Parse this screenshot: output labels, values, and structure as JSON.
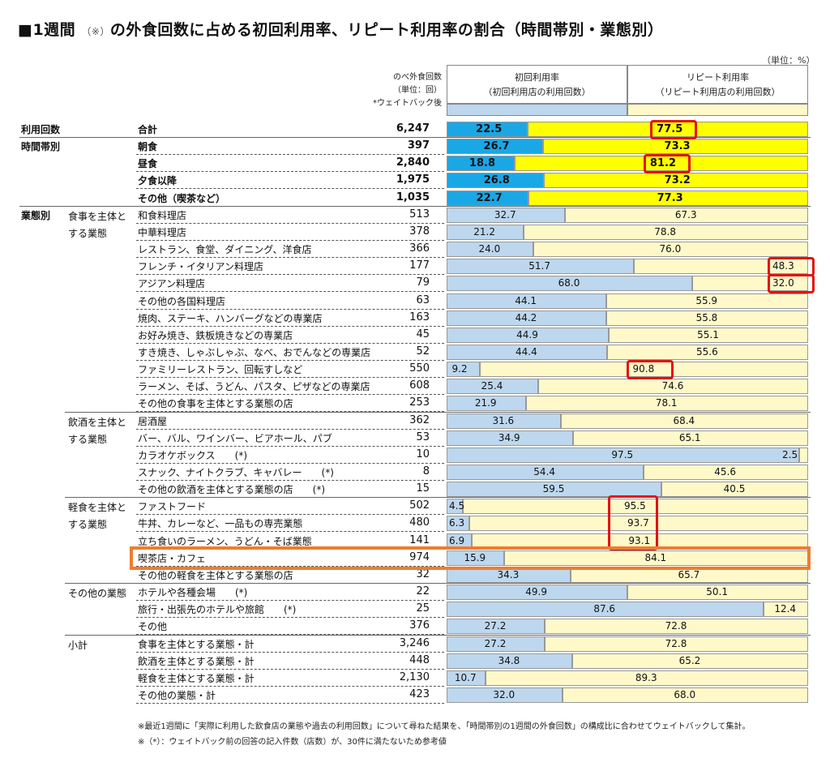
{
  "title": "■1週間",
  "title_note": "（※）",
  "title_rest": "の外食回数に占める初回利用率、リピート利用率の割合（時間帯別・業態別）",
  "unit": "（単位：%）",
  "header": {
    "count_lines": [
      "のべ外食回数",
      "（単位：回）",
      "*ウェイトバック後"
    ],
    "first_title": "初回利用率",
    "first_sub": "（初回利用店の利用回数）",
    "repeat_title": "リピート利用率",
    "repeat_sub": "（リピート利用店の利用回数）"
  },
  "colors": {
    "first_strong": "#1aa7e6",
    "repeat_strong": "#ffff00",
    "first_light": "#bdd7ee",
    "repeat_light": "#fff9c9",
    "highlight_red": "#e21212",
    "highlight_orange": "#ed7d31"
  },
  "chart_data": {
    "type": "bar",
    "stacked": true,
    "orientation": "horizontal",
    "unit": "%",
    "series": [
      {
        "name": "初回利用率"
      },
      {
        "name": "リピート利用率"
      }
    ],
    "rows": [
      {
        "g1": "利用回数",
        "g2": "",
        "label": "合計",
        "count": "6,247",
        "first": 22.5,
        "repeat": 77.5,
        "style": "strong",
        "bold": true,
        "box": "repeat"
      },
      {
        "g1": "時間帯別",
        "g2": "",
        "label": "朝食",
        "count": "397",
        "first": 26.7,
        "repeat": 73.3,
        "style": "strong",
        "bold": true
      },
      {
        "g1": "",
        "g2": "",
        "label": "昼食",
        "count": "2,840",
        "first": 18.8,
        "repeat": 81.2,
        "style": "strong",
        "bold": true,
        "box": "repeat"
      },
      {
        "g1": "",
        "g2": "",
        "label": "夕食以降",
        "count": "1,975",
        "first": 26.8,
        "repeat": 73.2,
        "style": "strong",
        "bold": true
      },
      {
        "g1": "",
        "g2": "",
        "label": "その他（喫茶など）",
        "count": "1,035",
        "first": 22.7,
        "repeat": 77.3,
        "style": "strong",
        "bold": true
      },
      {
        "g1": "業態別",
        "g2": "食事を主体とする業態",
        "label": "和食料理店",
        "count": "513",
        "first": 32.7,
        "repeat": 67.3,
        "style": "light"
      },
      {
        "g1": "",
        "g2": "",
        "label": "中華料理店",
        "count": "378",
        "first": 21.2,
        "repeat": 78.8,
        "style": "light"
      },
      {
        "g1": "",
        "g2": "",
        "label": "レストラン、食堂、ダイニング、洋食店",
        "count": "366",
        "first": 24.0,
        "repeat": 76.0,
        "style": "light"
      },
      {
        "g1": "",
        "g2": "",
        "label": "フレンチ・イタリアン料理店",
        "count": "177",
        "first": 51.7,
        "repeat": 48.3,
        "style": "light",
        "box": "repeat"
      },
      {
        "g1": "",
        "g2": "",
        "label": "アジアン料理店",
        "count": "79",
        "first": 68.0,
        "repeat": 32.0,
        "style": "light",
        "box": "repeat"
      },
      {
        "g1": "",
        "g2": "",
        "label": "その他の各国料理店",
        "count": "63",
        "first": 44.1,
        "repeat": 55.9,
        "style": "light"
      },
      {
        "g1": "",
        "g2": "",
        "label": "焼肉、ステーキ、ハンバーグなどの専業店",
        "count": "163",
        "first": 44.2,
        "repeat": 55.8,
        "style": "light"
      },
      {
        "g1": "",
        "g2": "",
        "label": "お好み焼き、鉄板焼きなどの専業店",
        "count": "45",
        "first": 44.9,
        "repeat": 55.1,
        "style": "light"
      },
      {
        "g1": "",
        "g2": "",
        "label": "すき焼き、しゃぶしゃぶ、なべ、おでんなどの専業店",
        "count": "52",
        "first": 44.4,
        "repeat": 55.6,
        "style": "light"
      },
      {
        "g1": "",
        "g2": "",
        "label": "ファミリーレストラン、回転すしなど",
        "count": "550",
        "first": 9.2,
        "repeat": 90.8,
        "style": "light",
        "box": "repeat"
      },
      {
        "g1": "",
        "g2": "",
        "label": "ラーメン、そば、うどん、パスタ、ピザなどの専業店",
        "count": "608",
        "first": 25.4,
        "repeat": 74.6,
        "style": "light"
      },
      {
        "g1": "",
        "g2": "",
        "label": "その他の食事を主体とする業態の店",
        "count": "253",
        "first": 21.9,
        "repeat": 78.1,
        "style": "light"
      },
      {
        "g1": "",
        "g2": "飲酒を主体とする業態",
        "label": "居酒屋",
        "count": "362",
        "first": 31.6,
        "repeat": 68.4,
        "style": "light"
      },
      {
        "g1": "",
        "g2": "",
        "label": "バー、バル、ワインバー、ビアホール、パブ",
        "count": "53",
        "first": 34.9,
        "repeat": 65.1,
        "style": "light"
      },
      {
        "g1": "",
        "g2": "",
        "label": "カラオケボックス　　(*)",
        "count": "10",
        "first": 97.5,
        "repeat": 2.5,
        "style": "light"
      },
      {
        "g1": "",
        "g2": "",
        "label": "スナック、ナイトクラブ、キャバレー　　(*)",
        "count": "8",
        "first": 54.4,
        "repeat": 45.6,
        "style": "light"
      },
      {
        "g1": "",
        "g2": "",
        "label": "その他の飲酒を主体とする業態の店　　(*)",
        "count": "15",
        "first": 59.5,
        "repeat": 40.5,
        "style": "light"
      },
      {
        "g1": "",
        "g2": "軽食を主体とする業態",
        "label": "ファストフード",
        "count": "502",
        "first": 4.5,
        "repeat": 95.5,
        "style": "light"
      },
      {
        "g1": "",
        "g2": "",
        "label": "牛丼、カレーなど、一品もの専売業態",
        "count": "480",
        "first": 6.3,
        "repeat": 93.7,
        "style": "light"
      },
      {
        "g1": "",
        "g2": "",
        "label": "立ち食いのラーメン、うどん・そば業態",
        "count": "141",
        "first": 6.9,
        "repeat": 93.1,
        "style": "light"
      },
      {
        "g1": "",
        "g2": "",
        "label": "喫茶店・カフェ",
        "count": "974",
        "first": 15.9,
        "repeat": 84.1,
        "style": "light"
      },
      {
        "g1": "",
        "g2": "",
        "label": "その他の軽食を主体とする業態の店",
        "count": "32",
        "first": 34.3,
        "repeat": 65.7,
        "style": "light"
      },
      {
        "g1": "",
        "g2": "その他の業態",
        "label": "ホテルや各種会場　　(*)",
        "count": "22",
        "first": 49.9,
        "repeat": 50.1,
        "style": "light"
      },
      {
        "g1": "",
        "g2": "",
        "label": "旅行・出張先のホテルや旅館　　(*)",
        "count": "25",
        "first": 87.6,
        "repeat": 12.4,
        "style": "light"
      },
      {
        "g1": "",
        "g2": "",
        "label": "その他",
        "count": "376",
        "first": 27.2,
        "repeat": 72.8,
        "style": "light"
      },
      {
        "g1": "",
        "g2": "小計",
        "label": "食事を主体とする業態・計",
        "count": "3,246",
        "first": 27.2,
        "repeat": 72.8,
        "style": "light"
      },
      {
        "g1": "",
        "g2": "",
        "label": "飲酒を主体とする業態・計",
        "count": "448",
        "first": 34.8,
        "repeat": 65.2,
        "style": "light"
      },
      {
        "g1": "",
        "g2": "",
        "label": "軽食を主体とする業態・計",
        "count": "2,130",
        "first": 10.7,
        "repeat": 89.3,
        "style": "light"
      },
      {
        "g1": "",
        "g2": "",
        "label": "その他の業態・計",
        "count": "423",
        "first": 32.0,
        "repeat": 68.0,
        "style": "light"
      }
    ]
  },
  "footnotes": [
    "※最近1週間に「実際に利用した飲食店の業態や過去の利用回数」について尋ねた結果を、「時間帯別の1週間の外食回数」の構成比に合わせてウェイトバックして集計。",
    "※（*）：ウェイトバック前の回答の記入件数（店数）が、30件に満たないため参考値"
  ]
}
